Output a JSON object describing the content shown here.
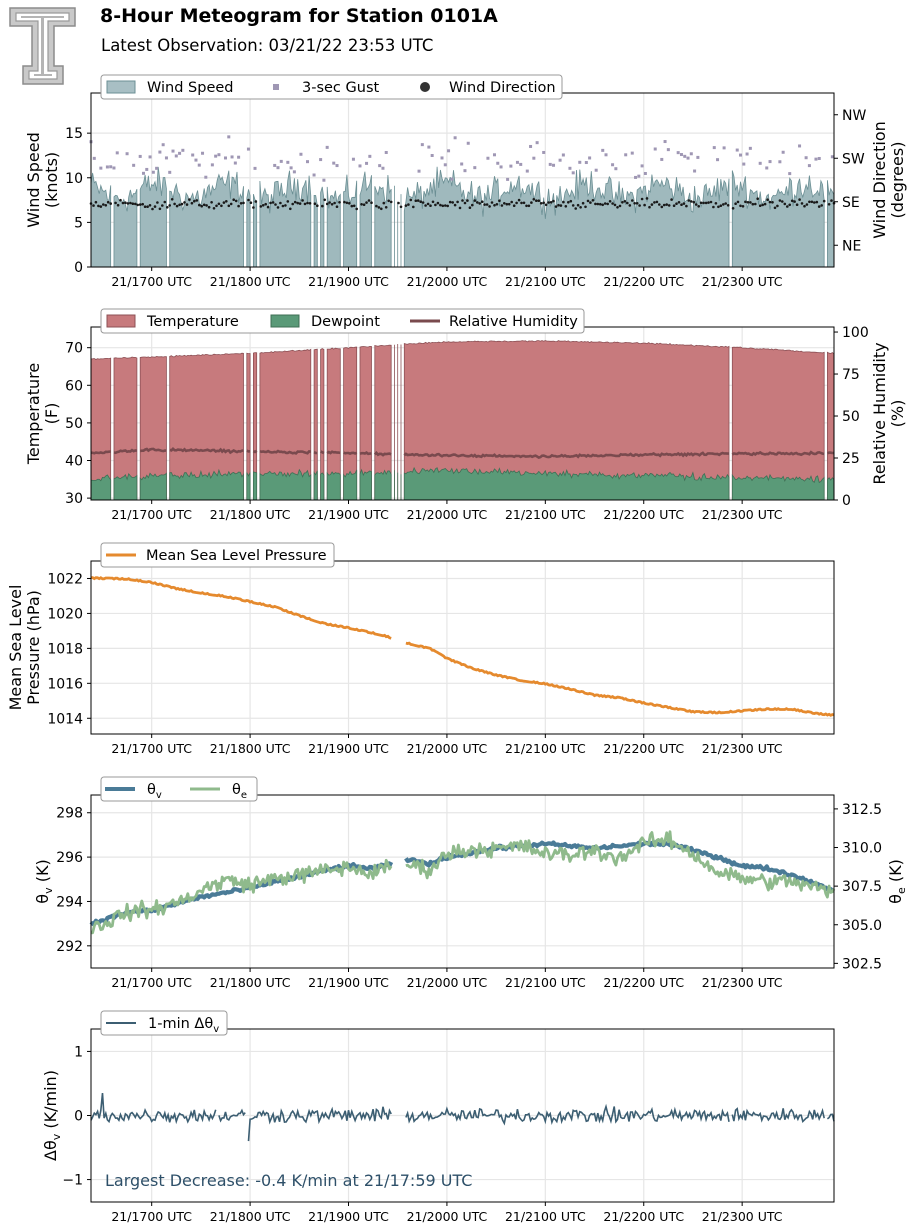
{
  "header": {
    "title": "8-Hour Meteogram for Station 0101A",
    "subtitle": "Latest Observation: 03/21/22 23:53 UTC",
    "logo_icon": "texas-tech-double-t-logo"
  },
  "chart_data": [
    {
      "type": "area",
      "panel": "wind",
      "ylabel": [
        "Wind Speed",
        "(knots)"
      ],
      "ylabel2": [
        "Wind Direction",
        "(degrees)"
      ],
      "ylim": [
        0,
        19.5
      ],
      "yticks": [
        0,
        5,
        10,
        15
      ],
      "yticks2": [
        "NE",
        "SE",
        "SW",
        "NW"
      ],
      "ylim2": [
        0,
        360
      ],
      "yticks2_values": [
        45,
        135,
        225,
        315
      ],
      "xlim": [
        "21/16:23",
        "21/23:56"
      ],
      "xticks": [
        "21/1700 UTC",
        "21/1800 UTC",
        "21/1900 UTC",
        "21/2000 UTC",
        "21/2100 UTC",
        "21/2200 UTC",
        "21/2300 UTC"
      ],
      "legend": [
        "Wind Speed",
        "3-sec Gust",
        "Wind Direction"
      ],
      "legend_position": "top-left",
      "grid": true,
      "series": [
        {
          "name": "Wind Speed",
          "kind": "area",
          "typical_range": [
            4,
            13
          ],
          "mean": 8.5,
          "color": "#9fb9bd"
        },
        {
          "name": "3-sec Gust",
          "kind": "scatter",
          "typical_range": [
            8,
            17.5
          ],
          "mean": 12,
          "color": "#9f97b4"
        },
        {
          "name": "Wind Direction",
          "kind": "scatter",
          "typical_range": [
            110,
            150
          ],
          "mean": 130,
          "color": "#1a1a1a"
        }
      ],
      "gaps_utc": [
        "16:36",
        "16:52",
        "17:10",
        "17:57",
        "18:01",
        "18:05",
        "18:38",
        "18:42",
        "18:46",
        "18:56",
        "19:06",
        "19:15",
        "19:27",
        "19:29",
        "19:31",
        "19:33",
        "22:53",
        "23:51"
      ]
    },
    {
      "type": "area",
      "panel": "temperature",
      "ylabel": [
        "Temperature",
        "(F)"
      ],
      "ylabel2": [
        "Relative Humidity",
        "(%)"
      ],
      "ylim": [
        29.5,
        75.5
      ],
      "yticks": [
        30,
        40,
        50,
        60,
        70
      ],
      "ylim2": [
        0,
        103
      ],
      "yticks2": [
        0,
        25,
        50,
        75,
        100
      ],
      "xticks": [
        "21/1700 UTC",
        "21/1800 UTC",
        "21/1900 UTC",
        "21/2000 UTC",
        "21/2100 UTC",
        "21/2200 UTC",
        "21/2300 UTC"
      ],
      "legend": [
        "Temperature",
        "Dewpoint",
        "Relative Humidity"
      ],
      "legend_position": "top-left",
      "grid": true,
      "series": [
        {
          "name": "Temperature",
          "kind": "area",
          "x_utc": [
            "16:23",
            "17:00",
            "18:00",
            "19:00",
            "19:35",
            "20:00",
            "21:00",
            "22:00",
            "23:00",
            "23:56"
          ],
          "values": [
            67,
            67.5,
            68.5,
            70,
            71,
            71.5,
            71.8,
            71.2,
            70,
            68.5
          ],
          "color": "#c77a7d"
        },
        {
          "name": "Dewpoint",
          "kind": "area",
          "x_utc": [
            "16:23",
            "17:00",
            "18:00",
            "19:00",
            "19:35",
            "20:00",
            "21:00",
            "22:00",
            "23:00",
            "23:56"
          ],
          "values": [
            35,
            36,
            36.5,
            36.5,
            37,
            37.5,
            36.5,
            36,
            35.5,
            35
          ],
          "color": "#5a9a78"
        },
        {
          "name": "Relative Humidity",
          "kind": "line",
          "x_utc": [
            "16:23",
            "17:00",
            "18:00",
            "19:00",
            "19:35",
            "20:00",
            "21:00",
            "22:00",
            "23:00",
            "23:56"
          ],
          "values": [
            28,
            30,
            29,
            28,
            27,
            26.5,
            26,
            27,
            27.5,
            28
          ],
          "color": "#7a4a4e"
        }
      ],
      "gaps_utc": [
        "16:36",
        "16:52",
        "17:10",
        "17:57",
        "18:01",
        "18:05",
        "18:38",
        "18:42",
        "18:46",
        "18:56",
        "19:06",
        "19:15",
        "19:27",
        "19:29",
        "19:31",
        "19:33",
        "22:53",
        "23:51"
      ]
    },
    {
      "type": "line",
      "panel": "pressure",
      "ylabel": [
        "Mean Sea Level",
        "Pressure (hPa)"
      ],
      "ylim": [
        1013.1,
        1023
      ],
      "yticks": [
        1014,
        1016,
        1018,
        1020,
        1022
      ],
      "xticks": [
        "21/1700 UTC",
        "21/1800 UTC",
        "21/1900 UTC",
        "21/2000 UTC",
        "21/2100 UTC",
        "21/2200 UTC",
        "21/2300 UTC"
      ],
      "legend": [
        "Mean Sea Level Pressure"
      ],
      "legend_position": "top-left",
      "grid": true,
      "series": [
        {
          "name": "Mean Sea Level Pressure",
          "x_utc": [
            "16:23",
            "16:45",
            "17:00",
            "17:15",
            "17:30",
            "17:45",
            "18:00",
            "18:15",
            "18:30",
            "18:45",
            "19:00",
            "19:15",
            "19:22",
            "19:35",
            "19:50",
            "20:00",
            "20:15",
            "20:30",
            "20:45",
            "21:00",
            "21:15",
            "21:30",
            "21:45",
            "22:00",
            "22:15",
            "22:30",
            "22:45",
            "23:00",
            "23:15",
            "23:30",
            "23:45",
            "23:56"
          ],
          "values": [
            1022.0,
            1021.95,
            1021.75,
            1021.4,
            1021.15,
            1020.95,
            1020.65,
            1020.35,
            1019.85,
            1019.4,
            1019.15,
            1018.85,
            1018.7,
            1018.3,
            1017.95,
            1017.4,
            1016.85,
            1016.45,
            1016.15,
            1015.95,
            1015.65,
            1015.3,
            1015.15,
            1014.85,
            1014.6,
            1014.35,
            1014.3,
            1014.4,
            1014.5,
            1014.5,
            1014.25,
            1014.15
          ],
          "color": "#e58a2e"
        }
      ],
      "gaps_utc": [
        "19:27-19:35"
      ]
    },
    {
      "type": "line",
      "panel": "theta",
      "ylabel": "θv (K)",
      "ylabel2": "θe (K)",
      "ylim": [
        291.0,
        298.8
      ],
      "yticks": [
        292,
        294,
        296,
        298
      ],
      "ylim2": [
        302.2,
        313.4
      ],
      "yticks2": [
        302.5,
        305.0,
        307.5,
        310.0,
        312.5
      ],
      "xticks": [
        "21/1700 UTC",
        "21/1800 UTC",
        "21/1900 UTC",
        "21/2000 UTC",
        "21/2100 UTC",
        "21/2200 UTC",
        "21/2300 UTC"
      ],
      "legend": [
        "θv",
        "θe"
      ],
      "legend_position": "top-left",
      "grid": true,
      "series": [
        {
          "name": "θv",
          "x_utc": [
            "16:23",
            "16:45",
            "17:00",
            "17:15",
            "17:30",
            "17:45",
            "18:00",
            "18:15",
            "18:30",
            "18:45",
            "19:00",
            "19:15",
            "19:27",
            "19:35",
            "19:50",
            "20:00",
            "20:15",
            "20:30",
            "20:45",
            "21:00",
            "21:15",
            "21:30",
            "21:45",
            "22:00",
            "22:15",
            "22:30",
            "22:45",
            "23:00",
            "23:15",
            "23:30",
            "23:45",
            "23:56"
          ],
          "values": [
            293.0,
            293.5,
            293.6,
            293.9,
            294.2,
            294.4,
            294.6,
            294.9,
            295.1,
            295.4,
            295.6,
            295.5,
            295.7,
            295.9,
            295.7,
            296.0,
            296.2,
            296.4,
            296.5,
            296.6,
            296.5,
            296.4,
            296.5,
            296.6,
            296.6,
            296.3,
            296.0,
            295.6,
            295.5,
            295.2,
            294.8,
            294.5
          ],
          "color": "#4a7b97"
        },
        {
          "name": "θe",
          "x_utc": [
            "16:23",
            "16:45",
            "17:00",
            "17:15",
            "17:30",
            "17:45",
            "18:00",
            "18:15",
            "18:30",
            "18:45",
            "19:00",
            "19:15",
            "19:27",
            "19:35",
            "19:50",
            "20:00",
            "20:15",
            "20:30",
            "20:45",
            "21:00",
            "21:15",
            "21:30",
            "21:45",
            "22:00",
            "22:15",
            "22:30",
            "22:45",
            "23:00",
            "23:15",
            "23:30",
            "23:45",
            "23:56"
          ],
          "values": [
            304.7,
            305.8,
            306.0,
            306.4,
            307.2,
            307.9,
            307.6,
            308.0,
            308.2,
            308.5,
            308.7,
            308.3,
            308.9,
            308.9,
            308.6,
            309.6,
            309.9,
            309.9,
            310.1,
            309.6,
            309.5,
            309.8,
            309.3,
            310.3,
            310.5,
            309.6,
            308.4,
            308.0,
            307.8,
            307.8,
            307.4,
            307.0
          ],
          "color": "#8fba8c"
        }
      ],
      "gaps_utc": [
        "19:27-19:35"
      ]
    },
    {
      "type": "line",
      "panel": "dtheta",
      "ylabel": "Δθv (K/min)",
      "ylim": [
        -1.35,
        1.35
      ],
      "yticks": [
        -1,
        0,
        1
      ],
      "xticks": [
        "21/1700 UTC",
        "21/1800 UTC",
        "21/1900 UTC",
        "21/2000 UTC",
        "21/2100 UTC",
        "21/2200 UTC",
        "21/2300 UTC"
      ],
      "legend": [
        "1-min Δθv"
      ],
      "legend_position": "top-left",
      "grid": true,
      "annotation": "Largest Decrease: -0.4 K/min at 21/17:59 UTC",
      "series": [
        {
          "name": "1-min Δθv",
          "typical_range": [
            -0.3,
            0.3
          ],
          "min": -0.4,
          "max": 0.35,
          "color": "#3c5e72"
        }
      ],
      "gaps_utc": [
        "17:40",
        "17:58",
        "19:27-19:35",
        "22:53",
        "23:51"
      ]
    }
  ]
}
